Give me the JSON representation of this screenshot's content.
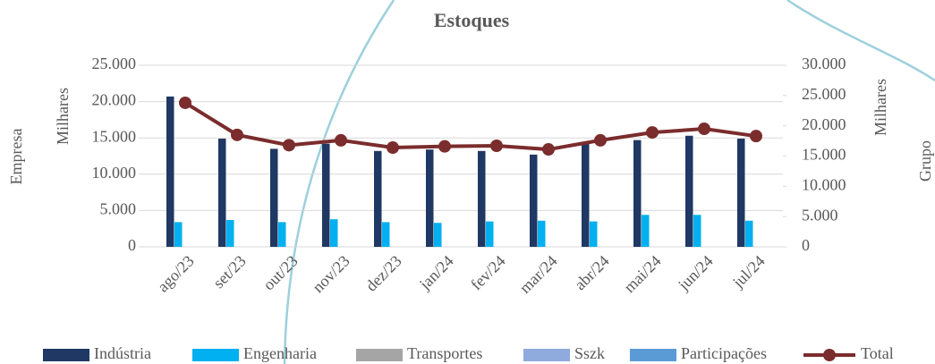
{
  "chart_data": {
    "type": "bar",
    "title": "Estoques",
    "y_label": "Empresa",
    "y_unit": "Milhares",
    "y2_label": "Grupo",
    "y2_unit": "Milhares",
    "categories": [
      "ago/23",
      "set/23",
      "out/23",
      "nov/23",
      "dez/23",
      "jan/24",
      "fev/24",
      "mar/24",
      "abr/24",
      "mai/24",
      "jun/24",
      "jul/24"
    ],
    "series": [
      {
        "name": "Indústria",
        "color": "#1f3864",
        "values": [
          20700,
          14900,
          13500,
          14200,
          13200,
          13400,
          13200,
          12700,
          14300,
          14700,
          15300,
          14900
        ]
      },
      {
        "name": "Engenharia",
        "color": "#00b0f0",
        "values": [
          3400,
          3700,
          3400,
          3800,
          3400,
          3300,
          3500,
          3600,
          3500,
          4400,
          4400,
          3600
        ]
      },
      {
        "name": "Transportes",
        "color": "#a5a5a5",
        "values": [
          0,
          0,
          0,
          0,
          0,
          0,
          0,
          0,
          0,
          0,
          0,
          0
        ]
      },
      {
        "name": "Sszk",
        "color": "#8faadc",
        "values": [
          0,
          0,
          0,
          0,
          0,
          0,
          0,
          0,
          0,
          0,
          0,
          0
        ]
      },
      {
        "name": "Participações",
        "color": "#5b9bd5",
        "values": [
          0,
          0,
          0,
          0,
          0,
          0,
          0,
          0,
          0,
          0,
          0,
          0
        ]
      },
      {
        "name": "Total",
        "color": "#7b2c2c",
        "type": "line",
        "axis": "y2",
        "values": [
          23800,
          18500,
          16800,
          17600,
          16400,
          16600,
          16700,
          16100,
          17600,
          18900,
          19500,
          18300
        ]
      }
    ],
    "ylim": [
      0,
      25000
    ],
    "yticks": [
      0,
      {
        "value": 5000,
        "label": "5.000"
      },
      {
        "value": 10000,
        "label": "10.000"
      },
      {
        "value": 15000,
        "label": "15.000"
      },
      {
        "value": 20000,
        "label": "20.000"
      },
      {
        "value": 25000,
        "label": "25.000"
      }
    ],
    "y2lim": [
      0,
      30000
    ],
    "y2ticks": [
      0,
      {
        "value": 5000,
        "label": "5.000"
      },
      {
        "value": 10000,
        "label": "10.000"
      },
      {
        "value": 15000,
        "label": "15.000"
      },
      {
        "value": 20000,
        "label": "20.000"
      },
      {
        "value": 25000,
        "label": "25.000"
      },
      {
        "value": 30000,
        "label": "30.000"
      }
    ],
    "grid": true
  }
}
